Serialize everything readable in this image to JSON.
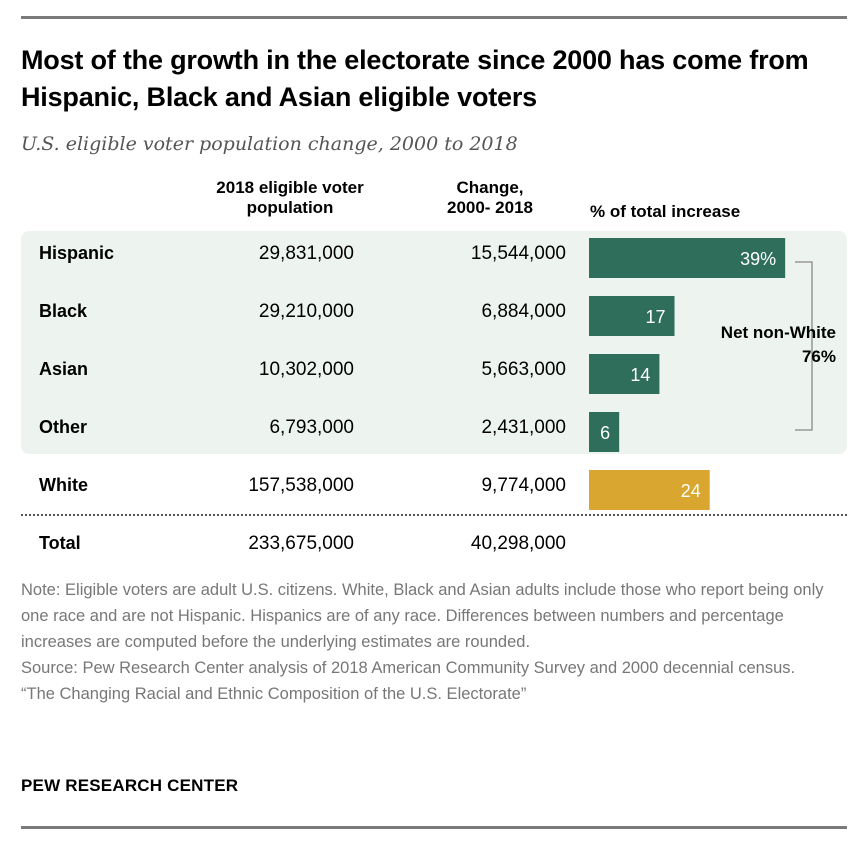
{
  "title": "Most of the growth in the electorate since 2000 has come from Hispanic, Black and Asian eligible voters",
  "subtitle": "U.S. eligible voter population change, 2000 to 2018",
  "columns": {
    "population": "2018 eligible voter population",
    "change_line1": "Change,",
    "change_line2": "2000- 2018",
    "pct": "% of total increase"
  },
  "chart_data": {
    "type": "bar",
    "categories": [
      "Hispanic",
      "Black",
      "Asian",
      "Other",
      "White"
    ],
    "values": [
      39,
      17,
      14,
      6,
      24
    ],
    "value_labels": [
      "39%",
      "17",
      "14",
      "6",
      "24"
    ],
    "population_2018": [
      "29,831,000",
      "29,210,000",
      "10,302,000",
      "6,793,000",
      "157,538,000"
    ],
    "change_2000_2018": [
      "15,544,000",
      "6,884,000",
      "5,663,000",
      "2,431,000",
      "9,774,000"
    ],
    "colors": {
      "non_white": "#2e6e5b",
      "white": "#d9a72f",
      "panel": "#edf4ef"
    },
    "total": {
      "label": "Total",
      "population": "233,675,000",
      "change": "40,298,000"
    },
    "annotation": {
      "line1": "Net non-White",
      "line2": "76%"
    },
    "xlim": [
      0,
      100
    ],
    "grid": false
  },
  "notes": {
    "note": "Note: Eligible voters are adult U.S. citizens. White, Black and Asian adults include those who report being only one race and are not Hispanic. Hispanics are of any race. Differences between numbers and percentage increases are computed before the underlying estimates are rounded.",
    "source": "Source: Pew Research Center analysis of 2018 American Community Survey and 2000 decennial census.",
    "report": "“The Changing Racial and Ethnic Composition of the U.S. Electorate”"
  },
  "brand": "PEW RESEARCH CENTER"
}
